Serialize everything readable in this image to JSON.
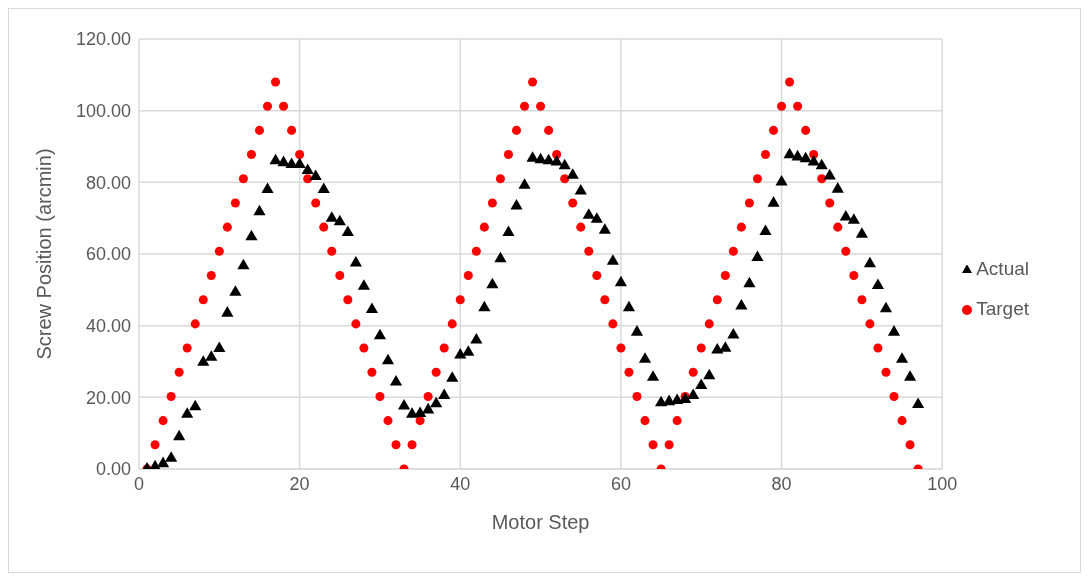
{
  "chart_data": {
    "type": "scatter",
    "xlabel": "Motor Step",
    "ylabel": "Screw Position (arcmin)",
    "x": [
      1,
      2,
      3,
      4,
      5,
      6,
      7,
      8,
      9,
      10,
      11,
      12,
      13,
      14,
      15,
      16,
      17,
      18,
      19,
      20,
      21,
      22,
      23,
      24,
      25,
      26,
      27,
      28,
      29,
      30,
      31,
      32,
      33,
      34,
      35,
      36,
      37,
      38,
      39,
      40,
      41,
      42,
      43,
      44,
      45,
      46,
      47,
      48,
      49,
      50,
      51,
      52,
      53,
      54,
      55,
      56,
      57,
      58,
      59,
      60,
      61,
      62,
      63,
      64,
      65,
      66,
      67,
      68,
      69,
      70,
      71,
      72,
      73,
      74,
      75,
      76,
      77,
      78,
      79,
      80,
      81,
      82,
      83,
      84,
      85,
      86,
      87,
      88,
      89,
      90,
      91,
      92,
      93,
      94,
      95,
      96,
      97
    ],
    "series": [
      {
        "name": "Target",
        "color": "#ff0000",
        "marker": "circle",
        "values": [
          0,
          6.75,
          13.5,
          20.25,
          27,
          33.75,
          40.5,
          47.25,
          54,
          60.75,
          67.5,
          74.25,
          81,
          87.75,
          94.5,
          101.25,
          108,
          101.25,
          94.5,
          87.75,
          81,
          74.25,
          67.5,
          60.75,
          54,
          47.25,
          40.5,
          33.75,
          27,
          20.25,
          13.5,
          6.75,
          0,
          6.75,
          13.5,
          20.25,
          27,
          33.75,
          40.5,
          47.25,
          54,
          60.75,
          67.5,
          74.25,
          81,
          87.75,
          94.5,
          101.25,
          108,
          101.25,
          94.5,
          87.75,
          81,
          74.25,
          67.5,
          60.75,
          54,
          47.25,
          40.5,
          33.75,
          27,
          20.25,
          13.5,
          6.75,
          0,
          6.75,
          13.5,
          20.25,
          27,
          33.75,
          40.5,
          47.25,
          54,
          60.75,
          67.5,
          74.25,
          81,
          87.75,
          94.5,
          101.25,
          108,
          101.25,
          94.5,
          87.75,
          81,
          74.25,
          67.5,
          60.75,
          54,
          47.25,
          40.5,
          33.75,
          27,
          20.25,
          13.5,
          6.75,
          0
        ]
      },
      {
        "name": "Actual",
        "color": "#000000",
        "marker": "triangle",
        "values": [
          0,
          0.6,
          1.5,
          3,
          9,
          15.3,
          17.4,
          29.8,
          31.2,
          33.6,
          43.5,
          49.3,
          56.7,
          64.8,
          71.8,
          78,
          86,
          85.5,
          85,
          85,
          83.3,
          81.6,
          78,
          70,
          69,
          66,
          57.5,
          51,
          44.5,
          37.2,
          30.2,
          24.3,
          17.6,
          15.3,
          15.5,
          16.5,
          18.2,
          20.5,
          25.3,
          31.8,
          32.6,
          36,
          45,
          51.4,
          58.7,
          66,
          73.4,
          79.2,
          86.7,
          86.3,
          86,
          85.7,
          84.6,
          82,
          77.6,
          70.8,
          69.7,
          66.6,
          58,
          52,
          45,
          38.2,
          30.6,
          25.6,
          18.5,
          18.8,
          19.1,
          19.4,
          20.5,
          23.3,
          26,
          33.2,
          33.7,
          37.4,
          45.5,
          51.7,
          59,
          66.3,
          74.2,
          80.1,
          87.7,
          87.1,
          86.6,
          85.7,
          84.6,
          81.8,
          78.1,
          70.3,
          69.4,
          65.5,
          57.3,
          51.2,
          44.7,
          38.2,
          30.6,
          25.6,
          18
        ]
      }
    ],
    "xlim": [
      0,
      100
    ],
    "xticks": [
      0,
      20,
      40,
      60,
      80,
      100
    ],
    "ylim": [
      0,
      120
    ],
    "yticks": [
      {
        "value": 0,
        "label": "0.00"
      },
      {
        "value": 20,
        "label": "20.00"
      },
      {
        "value": 40,
        "label": "40.00"
      },
      {
        "value": 60,
        "label": "60.00"
      },
      {
        "value": 80,
        "label": "80.00"
      },
      {
        "value": 100,
        "label": "100.00"
      },
      {
        "value": 120,
        "label": "120.00"
      }
    ],
    "grid": true,
    "legend": "right"
  }
}
